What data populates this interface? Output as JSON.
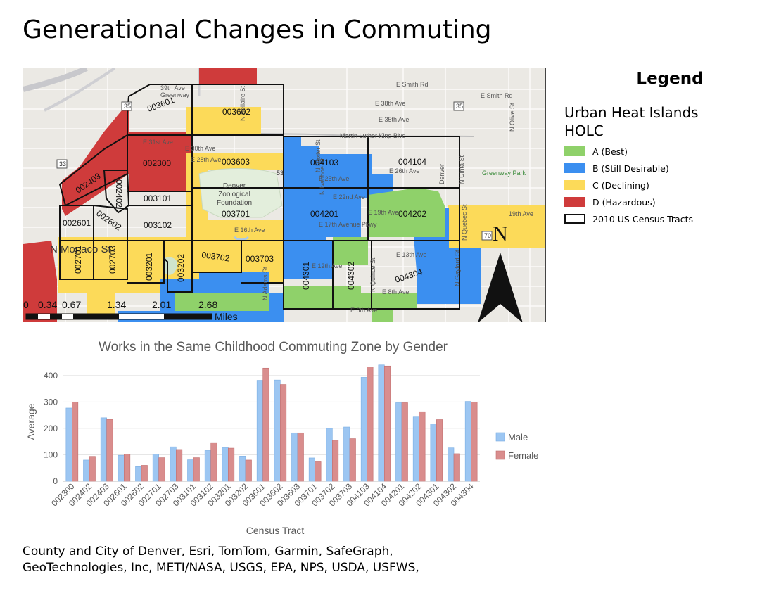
{
  "title": "Generational Changes in Commuting",
  "legend": {
    "title": "Legend",
    "group1": "Urban Heat Islands",
    "group2": "HOLC",
    "items": [
      {
        "label": "A (Best)",
        "color": "#8fd16a"
      },
      {
        "label": "B (Still Desirable)",
        "color": "#3b8ff0"
      },
      {
        "label": "C (Declining)",
        "color": "#fcda59"
      },
      {
        "label": "D (Hazardous)",
        "color": "#cf3b3b"
      },
      {
        "label": "2010 US Census Tracts",
        "color": "#ffffff"
      }
    ]
  },
  "map": {
    "tract_labels": [
      "003601",
      "003602",
      "002300",
      "003603",
      "004103",
      "004104",
      "002403",
      "002402",
      "003101",
      "003701",
      "004201",
      "004202",
      "002601",
      "002602",
      "003102",
      "002701",
      "002703",
      "003201",
      "003202",
      "003702",
      "003703",
      "004301",
      "004302",
      "004304"
    ],
    "street_labels": [
      "39th Ave",
      "Greenway",
      "E Smith Rd",
      "E Smith Rd",
      "E 38th Ave",
      "E 35th Ave",
      "Martin Luther King Blvd",
      "E 31st Ave",
      "E 30th Ave",
      "E 28th Ave",
      "E 26th Ave",
      "E 25th Ave",
      "E 22nd Ave",
      "E 19th Ave",
      "E 17th Avenue Pkwy",
      "E 16th Ave",
      "E 13th Ave",
      "E 12th Ave",
      "E 8th Ave",
      "E 6th Ave",
      "19th Ave",
      "Greenway Park",
      "Denver Zoological Foundation",
      "Denver",
      "N Olive St",
      "N Uinta St",
      "N Quebec St",
      "N Quince St",
      "N Ivanhoe St",
      "N Dexter St",
      "N Bellaire St",
      "N Adams St",
      "N Gaylord St",
      "N Monaco St"
    ],
    "highway_shields": [
      "35",
      "35",
      "33",
      "33",
      "53",
      "70"
    ],
    "north_label": "N",
    "scale_labels": [
      "0",
      "0.34",
      "0.67",
      "1.34",
      "2.01",
      "2.68"
    ],
    "scale_unit": "Miles"
  },
  "chart_data": {
    "type": "bar",
    "title": "Works in the Same Childhood Commuting Zone by Gender",
    "xlabel": "Census Tract",
    "ylabel": "Average",
    "ylim": [
      0,
      450
    ],
    "yticks": [
      0,
      100,
      200,
      300,
      400
    ],
    "grid": true,
    "legend_position": "right",
    "categories": [
      "002300",
      "002402",
      "002403",
      "002601",
      "002602",
      "002701",
      "002703",
      "003101",
      "003102",
      "003201",
      "003202",
      "003601",
      "003602",
      "003603",
      "003701",
      "003702",
      "003703",
      "004103",
      "004104",
      "004201",
      "004202",
      "004301",
      "004302",
      "004304"
    ],
    "series": [
      {
        "name": "Male",
        "color": "#9cc6f2",
        "values": [
          277,
          80,
          240,
          98,
          55,
          102,
          130,
          81,
          116,
          128,
          95,
          382,
          383,
          183,
          88,
          200,
          205,
          393,
          440,
          297,
          243,
          217,
          126,
          302
        ]
      },
      {
        "name": "Female",
        "color": "#d98d8d",
        "values": [
          300,
          94,
          234,
          102,
          60,
          89,
          120,
          89,
          146,
          125,
          80,
          428,
          366,
          183,
          76,
          155,
          161,
          433,
          436,
          297,
          263,
          233,
          104,
          300
        ]
      }
    ]
  },
  "source_lines": [
    "County and City of Denver, Esri, TomTom, Garmin, SafeGraph,",
    "GeoTechnologies, Inc, METI/NASA, USGS, EPA, NPS, USDA, USFWS,"
  ]
}
